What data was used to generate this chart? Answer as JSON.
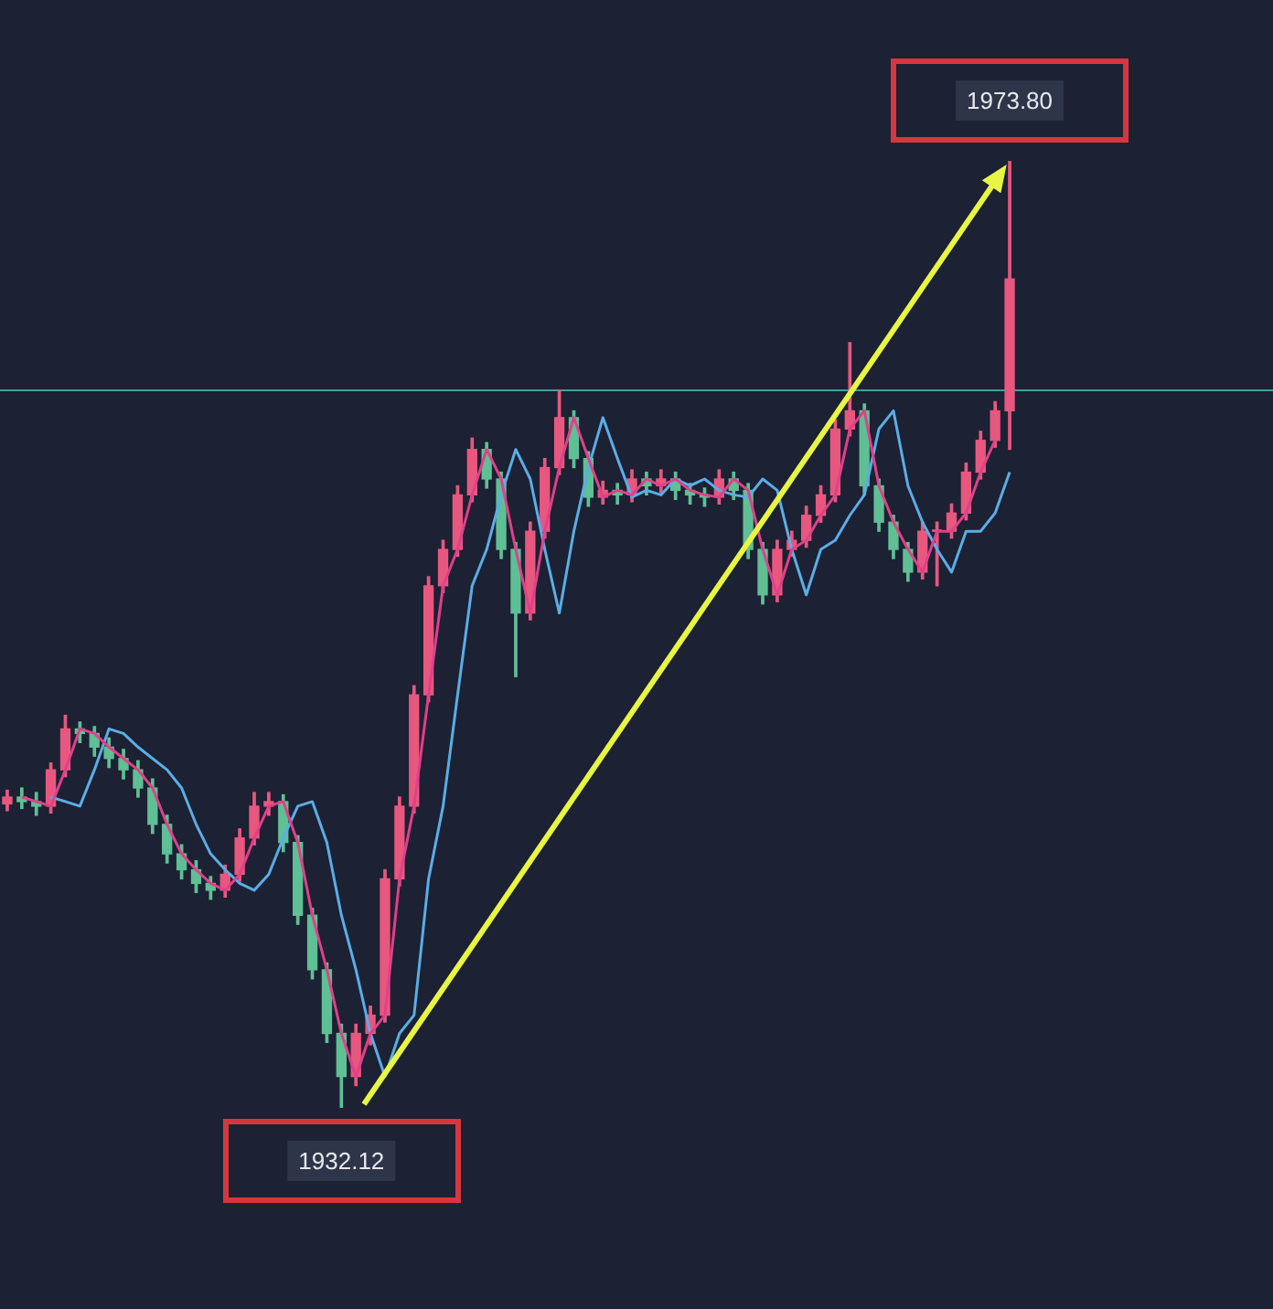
{
  "chart_data": {
    "type": "candlestick",
    "categories": [
      null,
      null,
      null,
      null,
      null,
      null,
      null,
      null,
      null,
      null,
      null,
      null,
      null,
      null,
      null,
      null,
      null,
      null,
      null,
      null,
      null,
      null,
      null,
      null,
      null,
      null,
      null,
      null,
      null,
      null,
      null,
      null,
      null,
      null,
      null,
      null,
      null,
      null,
      null,
      null,
      null,
      null,
      null,
      null,
      null,
      null,
      null,
      null,
      null,
      null,
      null,
      null,
      null,
      null,
      null,
      null,
      null,
      null,
      null,
      null,
      null,
      null,
      null,
      null,
      null,
      null,
      null,
      null,
      null,
      null
    ],
    "ohlc": [
      [
        1945.5,
        1946.1,
        1945.2,
        1945.8
      ],
      [
        1945.8,
        1946.2,
        1945.3,
        1945.6
      ],
      [
        1945.6,
        1946.0,
        1945.0,
        1945.4
      ],
      [
        1945.4,
        1947.3,
        1945.1,
        1947.0
      ],
      [
        1947.0,
        1949.4,
        1946.7,
        1948.8
      ],
      [
        1948.8,
        1949.1,
        1948.2,
        1948.6
      ],
      [
        1948.6,
        1948.9,
        1947.6,
        1948.0
      ],
      [
        1948.0,
        1948.4,
        1947.1,
        1947.5
      ],
      [
        1947.5,
        1947.9,
        1946.6,
        1947.0
      ],
      [
        1947.0,
        1947.4,
        1945.8,
        1946.2
      ],
      [
        1946.2,
        1946.6,
        1944.2,
        1944.6
      ],
      [
        1944.6,
        1945.0,
        1942.9,
        1943.3
      ],
      [
        1943.3,
        1943.7,
        1942.2,
        1942.6
      ],
      [
        1942.6,
        1943.0,
        1941.6,
        1942.0
      ],
      [
        1942.0,
        1942.3,
        1941.3,
        1941.7
      ],
      [
        1941.7,
        1942.8,
        1941.4,
        1942.4
      ],
      [
        1942.4,
        1944.4,
        1942.1,
        1944.0
      ],
      [
        1944.0,
        1946.0,
        1943.7,
        1945.4
      ],
      [
        1945.4,
        1946.0,
        1945.0,
        1945.6
      ],
      [
        1945.6,
        1945.9,
        1943.4,
        1943.8
      ],
      [
        1943.8,
        1944.1,
        1940.2,
        1940.6
      ],
      [
        1940.6,
        1940.9,
        1937.8,
        1938.2
      ],
      [
        1938.2,
        1938.5,
        1935.0,
        1935.4
      ],
      [
        1935.4,
        1935.8,
        1932.12,
        1933.5
      ],
      [
        1933.5,
        1935.8,
        1933.1,
        1935.4
      ],
      [
        1935.4,
        1936.6,
        1934.9,
        1936.2
      ],
      [
        1936.2,
        1942.6,
        1935.9,
        1942.2
      ],
      [
        1942.2,
        1945.8,
        1941.9,
        1945.4
      ],
      [
        1945.4,
        1950.7,
        1945.1,
        1950.3
      ],
      [
        1950.3,
        1955.5,
        1950.0,
        1955.1
      ],
      [
        1955.1,
        1957.1,
        1954.8,
        1956.7
      ],
      [
        1956.7,
        1959.5,
        1956.4,
        1959.1
      ],
      [
        1959.1,
        1961.6,
        1958.8,
        1961.1
      ],
      [
        1961.1,
        1961.4,
        1959.4,
        1959.8
      ],
      [
        1959.8,
        1960.1,
        1956.3,
        1956.7
      ],
      [
        1956.7,
        1957.0,
        1951.1,
        1953.9
      ],
      [
        1953.9,
        1957.9,
        1953.6,
        1957.5
      ],
      [
        1957.5,
        1960.7,
        1957.2,
        1960.3
      ],
      [
        1960.3,
        1963.7,
        1960.0,
        1962.5
      ],
      [
        1962.5,
        1962.8,
        1960.3,
        1960.7
      ],
      [
        1960.7,
        1961.0,
        1958.6,
        1959.0
      ],
      [
        1959.0,
        1959.7,
        1958.7,
        1959.3
      ],
      [
        1959.3,
        1959.6,
        1958.7,
        1959.1
      ],
      [
        1959.1,
        1960.2,
        1958.8,
        1959.8
      ],
      [
        1959.8,
        1960.1,
        1959.1,
        1959.5
      ],
      [
        1959.5,
        1960.2,
        1959.2,
        1959.8
      ],
      [
        1959.8,
        1960.1,
        1958.9,
        1959.3
      ],
      [
        1959.3,
        1959.6,
        1958.7,
        1959.1
      ],
      [
        1959.1,
        1959.4,
        1958.6,
        1959.0
      ],
      [
        1959.0,
        1960.2,
        1958.7,
        1959.8
      ],
      [
        1959.8,
        1960.1,
        1958.9,
        1959.3
      ],
      [
        1959.3,
        1959.6,
        1956.3,
        1956.7
      ],
      [
        1956.7,
        1957.0,
        1954.3,
        1954.7
      ],
      [
        1954.7,
        1957.1,
        1954.4,
        1956.7
      ],
      [
        1956.7,
        1957.5,
        1956.4,
        1957.1
      ],
      [
        1957.1,
        1958.6,
        1956.8,
        1958.2
      ],
      [
        1958.2,
        1959.5,
        1957.9,
        1959.1
      ],
      [
        1959.1,
        1962.4,
        1958.8,
        1962.0
      ],
      [
        1962.0,
        1965.8,
        1961.7,
        1962.8
      ],
      [
        1962.8,
        1963.1,
        1959.1,
        1959.5
      ],
      [
        1959.5,
        1959.8,
        1957.5,
        1957.9
      ],
      [
        1957.9,
        1958.2,
        1956.3,
        1956.7
      ],
      [
        1956.7,
        1957.0,
        1955.3,
        1955.7
      ],
      [
        1955.7,
        1957.9,
        1955.4,
        1957.5
      ],
      [
        1957.5,
        1957.9,
        1955.1,
        1957.5
      ],
      [
        1957.5,
        1958.7,
        1957.2,
        1958.3
      ],
      [
        1958.3,
        1960.5,
        1958.0,
        1960.1
      ],
      [
        1960.1,
        1961.9,
        1959.8,
        1961.5
      ],
      [
        1961.5,
        1963.2,
        1961.2,
        1962.8
      ],
      [
        1962.8,
        1973.8,
        1961.1,
        1968.6
      ]
    ],
    "colors": [
      "#e8577f",
      "#5fbf95",
      "#5fbf95",
      "#e8577f",
      "#e8577f",
      "#5fbf95",
      "#5fbf95",
      "#5fbf95",
      "#5fbf95",
      "#5fbf95",
      "#5fbf95",
      "#5fbf95",
      "#5fbf95",
      "#5fbf95",
      "#5fbf95",
      "#e8577f",
      "#e8577f",
      "#e8577f",
      "#e8577f",
      "#5fbf95",
      "#5fbf95",
      "#5fbf95",
      "#5fbf95",
      "#5fbf95",
      "#e8577f",
      "#e8577f",
      "#e8577f",
      "#e8577f",
      "#e8577f",
      "#e8577f",
      "#e8577f",
      "#e8577f",
      "#e8577f",
      "#5fbf95",
      "#5fbf95",
      "#5fbf95",
      "#e8577f",
      "#e8577f",
      "#e8577f",
      "#5fbf95",
      "#5fbf95",
      "#e8577f",
      "#5fbf95",
      "#e8577f",
      "#5fbf95",
      "#e8577f",
      "#5fbf95",
      "#5fbf95",
      "#5fbf95",
      "#e8577f",
      "#5fbf95",
      "#5fbf95",
      "#5fbf95",
      "#e8577f",
      "#e8577f",
      "#e8577f",
      "#e8577f",
      "#e8577f",
      "#e8577f",
      "#5fbf95",
      "#5fbf95",
      "#5fbf95",
      "#5fbf95",
      "#e8577f",
      "#e8577f",
      "#e8577f",
      "#e8577f",
      "#e8577f",
      "#e8577f",
      "#e8577f"
    ],
    "series": [
      {
        "type": "line",
        "color": "#e0408a",
        "values": [
          null,
          1945.8,
          1945.6,
          1945.4,
          1947.0,
          1948.8,
          1948.6,
          1948.0,
          1947.5,
          1947.0,
          1946.2,
          1944.6,
          1943.3,
          1942.6,
          1942.0,
          1941.7,
          1942.4,
          1944.0,
          1945.4,
          1945.6,
          1943.8,
          1940.6,
          1938.2,
          1935.4,
          1933.5,
          1935.4,
          1936.2,
          1942.2,
          1945.4,
          1950.3,
          1955.1,
          1956.7,
          1959.1,
          1961.1,
          1959.8,
          1956.7,
          1953.9,
          1957.5,
          1960.3,
          1962.5,
          1960.7,
          1959.0,
          1959.3,
          1959.1,
          1959.8,
          1959.5,
          1959.8,
          1959.3,
          1959.1,
          1959.0,
          1959.8,
          1959.3,
          1956.7,
          1954.7,
          1956.7,
          1957.1,
          1958.2,
          1959.1,
          1962.0,
          1962.8,
          1959.5,
          1957.9,
          1956.7,
          1955.7,
          1957.5,
          1957.5,
          1958.3,
          1960.1,
          1961.5,
          null
        ]
      },
      {
        "type": "line",
        "color": "#5aaee6",
        "values": [
          null,
          null,
          null,
          1945.8,
          1945.6,
          1945.4,
          1947.0,
          1948.8,
          1948.6,
          1948.0,
          1947.5,
          1947.0,
          1946.2,
          1944.6,
          1943.3,
          1942.6,
          1942.0,
          1941.7,
          1942.4,
          1944.0,
          1945.4,
          1945.6,
          1943.8,
          1940.6,
          1938.2,
          1935.4,
          1933.5,
          1935.4,
          1936.2,
          1942.2,
          1945.4,
          1950.3,
          1955.1,
          1956.7,
          1959.1,
          1961.1,
          1959.8,
          1956.7,
          1953.9,
          1957.5,
          1960.3,
          1962.5,
          1960.7,
          1959.0,
          1959.3,
          1959.1,
          1959.8,
          1959.5,
          1959.8,
          1959.3,
          1959.1,
          1959.0,
          1959.8,
          1959.3,
          1956.7,
          1954.7,
          1956.7,
          1957.1,
          1958.2,
          1959.1,
          1962.0,
          1962.8,
          1959.5,
          1957.9,
          1956.7,
          1955.7,
          1957.5,
          1957.5,
          1958.3,
          1960.1
        ]
      }
    ],
    "ref_lines": [
      {
        "axis": "y",
        "value": 1963.7,
        "color": "#3f9e9a"
      }
    ],
    "annotations": [
      {
        "text": "1973.80",
        "y": 1973.8
      },
      {
        "text": "1932.12",
        "y": 1932.12
      }
    ],
    "legend": false
  }
}
